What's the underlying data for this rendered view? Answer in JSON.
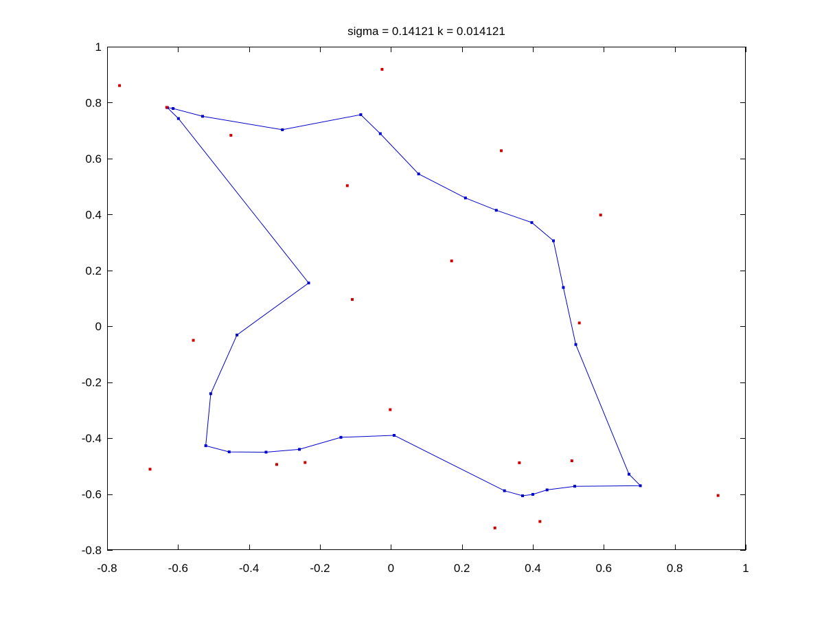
{
  "chart_data": {
    "type": "scatter",
    "title": "sigma = 0.14121 k = 0.014121",
    "xlabel": "",
    "ylabel": "",
    "xlim": [
      -0.8,
      1
    ],
    "ylim": [
      -0.8,
      1
    ],
    "xticks": [
      -0.8,
      -0.6,
      -0.4,
      -0.2,
      0,
      0.2,
      0.4,
      0.6,
      0.8,
      1
    ],
    "yticks": [
      -0.8,
      -0.6,
      -0.4,
      -0.2,
      0,
      0.2,
      0.4,
      0.6,
      0.8,
      1
    ],
    "xtick_labels": [
      "-0.8",
      "-0.6",
      "-0.4",
      "-0.2",
      "0",
      "0.2",
      "0.4",
      "0.6",
      "0.8",
      "1"
    ],
    "ytick_labels": [
      "-0.8",
      "-0.6",
      "-0.4",
      "-0.2",
      "0",
      "0.2",
      "0.4",
      "0.6",
      "0.8",
      "1"
    ],
    "grid": false,
    "legend": "none",
    "series": [
      {
        "kind": "closed-line-with-markers",
        "color": "#0000cc",
        "points": [
          [
            -0.63,
            0.782
          ],
          [
            -0.614,
            0.779
          ],
          [
            -0.531,
            0.751
          ],
          [
            -0.306,
            0.703
          ],
          [
            -0.085,
            0.757
          ],
          [
            -0.03,
            0.689
          ],
          [
            0.078,
            0.545
          ],
          [
            0.21,
            0.459
          ],
          [
            0.297,
            0.415
          ],
          [
            0.397,
            0.371
          ],
          [
            0.458,
            0.306
          ],
          [
            0.486,
            0.139
          ],
          [
            0.521,
            -0.065
          ],
          [
            0.671,
            -0.529
          ],
          [
            0.703,
            -0.57
          ],
          [
            0.518,
            -0.572
          ],
          [
            0.44,
            -0.585
          ],
          [
            0.4,
            -0.601
          ],
          [
            0.371,
            -0.606
          ],
          [
            0.32,
            -0.588
          ],
          [
            0.009,
            -0.39
          ],
          [
            -0.141,
            -0.397
          ],
          [
            -0.258,
            -0.44
          ],
          [
            -0.352,
            -0.45
          ],
          [
            -0.456,
            -0.449
          ],
          [
            -0.522,
            -0.427
          ],
          [
            -0.508,
            -0.241
          ],
          [
            -0.434,
            -0.031
          ],
          [
            -0.232,
            0.155
          ],
          [
            -0.599,
            0.743
          ]
        ]
      },
      {
        "kind": "scatter",
        "color": "#cc0000",
        "points": [
          [
            -0.765,
            0.861
          ],
          [
            -0.025,
            0.919
          ],
          [
            -0.632,
            0.783
          ],
          [
            -0.451,
            0.683
          ],
          [
            0.311,
            0.628
          ],
          [
            -0.123,
            0.503
          ],
          [
            0.591,
            0.398
          ],
          [
            0.171,
            0.234
          ],
          [
            -0.109,
            0.096
          ],
          [
            0.531,
            0.012
          ],
          [
            -0.557,
            -0.05
          ],
          [
            -0.002,
            -0.298
          ],
          [
            -0.679,
            -0.511
          ],
          [
            -0.322,
            -0.494
          ],
          [
            -0.242,
            -0.487
          ],
          [
            0.362,
            -0.488
          ],
          [
            0.51,
            -0.481
          ],
          [
            0.922,
            -0.605
          ],
          [
            0.293,
            -0.721
          ],
          [
            0.42,
            -0.698
          ]
        ]
      }
    ]
  }
}
